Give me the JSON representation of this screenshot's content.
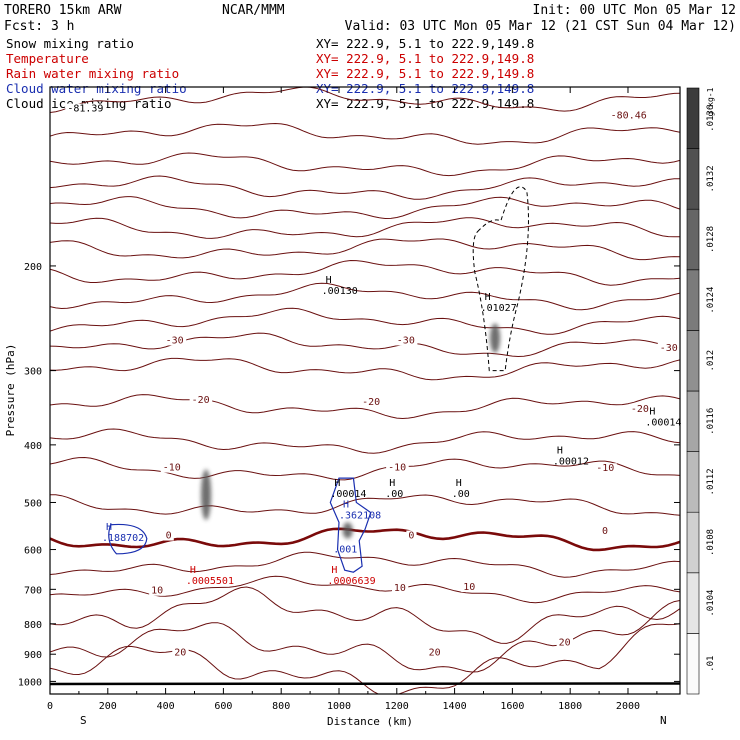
{
  "header": {
    "model": "TORERO  15km ARW",
    "center": "NCAR/MMM",
    "init": "Init: 00 UTC Mon 05 Mar 12",
    "fcst": "Fcst:    3 h",
    "valid": "Valid: 03 UTC Mon 05 Mar 12 (21 CST Sun 04 Mar 12)"
  },
  "legend": [
    {
      "name": "Snow mixing ratio",
      "color": "#000000",
      "xy": "XY= 222.9,  5.1 to 222.9,149.8"
    },
    {
      "name": "Temperature",
      "color": "#cc0000",
      "xy": "XY= 222.9,  5.1 to 222.9,149.8"
    },
    {
      "name": "Rain water mixing ratio",
      "color": "#cc0000",
      "xy": "XY= 222.9,  5.1 to 222.9,149.8"
    },
    {
      "name": "Cloud water mixing ratio",
      "color": "#1a2fb0",
      "xy": "XY= 222.9,  5.1 to 222.9,149.8"
    },
    {
      "name": "Cloud ice mixing ratio",
      "color": "#000000",
      "xy": "XY= 222.9,  5.1 to 222.9,149.8"
    }
  ],
  "chart_data": {
    "type": "cross-section contour",
    "xlabel": "Distance (km)",
    "ylabel": "Pressure (hPa)",
    "xlim": [
      0,
      2180
    ],
    "ylim": [
      1050,
      100
    ],
    "xticks": [
      0,
      200,
      400,
      600,
      800,
      1000,
      1200,
      1400,
      1600,
      1800,
      2000
    ],
    "yticks": [
      200,
      300,
      400,
      500,
      600,
      700,
      800,
      900,
      1000
    ],
    "x_start_label": "S",
    "x_end_label": "N",
    "temperature_contours": [
      {
        "value": -80,
        "p": 105
      },
      {
        "value": -75,
        "p": 120
      },
      {
        "value": -70,
        "p": 135
      },
      {
        "value": -65,
        "p": 148
      },
      {
        "value": -60,
        "p": 160
      },
      {
        "value": -55,
        "p": 173
      },
      {
        "value": -50,
        "p": 187
      },
      {
        "value": -45,
        "p": 205
      },
      {
        "value": -40,
        "p": 225
      },
      {
        "value": -35,
        "p": 248
      },
      {
        "value": -30,
        "p": 272
      },
      {
        "value": -25,
        "p": 298
      },
      {
        "value": -20,
        "p": 345
      },
      {
        "value": -15,
        "p": 395
      },
      {
        "value": -10,
        "p": 440
      },
      {
        "value": -5,
        "p": 505
      },
      {
        "value": 0,
        "p": 575
      },
      {
        "value": 5,
        "p": 635
      },
      {
        "value": 10,
        "p": 700
      },
      {
        "value": 15,
        "p": 775
      },
      {
        "value": 20,
        "p": 880
      },
      {
        "value": 25,
        "p": 960
      }
    ],
    "temperature_labels": [
      "-81.39",
      "-80.46",
      "-30",
      "-30",
      "-30",
      "-20",
      "-20",
      "-20",
      "-10",
      "-10",
      "-10",
      "0",
      "0",
      "0",
      "10",
      "10",
      "10",
      "20",
      "20",
      "20"
    ],
    "snow_shading": {
      "label": "g kg-1",
      "levels": [
        ".01",
        ".0104",
        ".0108",
        ".0112",
        ".0116",
        ".012",
        ".0124",
        ".0128",
        ".0132",
        ".0136"
      ]
    },
    "snow_patches": [
      {
        "x": 540,
        "p_top": 440,
        "p_bot": 535
      },
      {
        "x": 1540,
        "p_top": 250,
        "p_bot": 280
      },
      {
        "x": 1030,
        "p_top": 540,
        "p_bot": 575
      }
    ],
    "annotations": [
      {
        "text": "H",
        "value": ".00130",
        "x": 940,
        "p": 222,
        "color": "#000000"
      },
      {
        "text": "H",
        "value": ".01027",
        "x": 1490,
        "p": 237,
        "color": "#000000"
      },
      {
        "text": "H",
        "value": ".00014",
        "x": 2060,
        "p": 370,
        "color": "#000000"
      },
      {
        "text": "H",
        "value": ".00012",
        "x": 1740,
        "p": 430,
        "color": "#000000"
      },
      {
        "text": "H",
        "value": ".00014",
        "x": 970,
        "p": 488,
        "color": "#000000"
      },
      {
        "text": "H",
        "value": ".00",
        "x": 1160,
        "p": 488,
        "color": "#000000"
      },
      {
        "text": "H",
        "value": ".00",
        "x": 1390,
        "p": 488,
        "color": "#000000"
      },
      {
        "text": "H",
        "value": ".362108",
        "x": 1000,
        "p": 530,
        "color": "#1a2fb0"
      },
      {
        "text": "H",
        "value": ".188702",
        "x": 180,
        "p": 578,
        "color": "#1a2fb0"
      },
      {
        "text": "",
        "value": ".001",
        "x": 980,
        "p": 605,
        "color": "#1a2fb0"
      },
      {
        "text": "H",
        "value": ".0005501",
        "x": 470,
        "p": 683,
        "color": "#cc0000"
      },
      {
        "text": "H",
        "value": ".0006639",
        "x": 960,
        "p": 683,
        "color": "#cc0000"
      }
    ]
  }
}
